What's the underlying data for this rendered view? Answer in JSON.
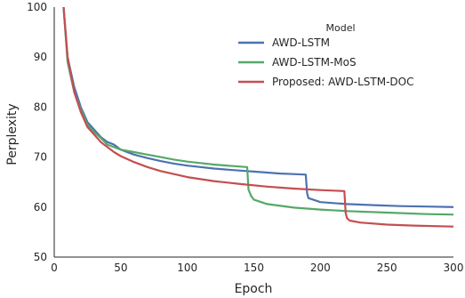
{
  "chart_data": {
    "type": "line",
    "xlabel": "Epoch",
    "ylabel": "Perplexity",
    "xlim": [
      0,
      300
    ],
    "ylim": [
      50,
      100
    ],
    "xticks": [
      0,
      50,
      100,
      150,
      200,
      250,
      300
    ],
    "yticks": [
      50,
      60,
      70,
      80,
      90,
      100
    ],
    "grid": false,
    "legend": {
      "title": "Model",
      "placement": "top-right"
    },
    "series": [
      {
        "name": "AWD-LSTM",
        "color": "#4c72b0",
        "x": [
          7,
          10,
          15,
          20,
          25,
          30,
          35,
          40,
          45,
          50,
          60,
          70,
          80,
          90,
          100,
          110,
          120,
          130,
          140,
          150,
          160,
          170,
          180,
          189,
          190,
          191,
          200,
          220,
          240,
          260,
          280,
          300
        ],
        "y": [
          100,
          90,
          84,
          80,
          77,
          75.5,
          74,
          73,
          72.5,
          71.5,
          70.5,
          69.8,
          69.2,
          68.7,
          68.3,
          68,
          67.7,
          67.5,
          67.3,
          67.1,
          66.9,
          66.7,
          66.6,
          66.5,
          62.8,
          61.8,
          61.0,
          60.6,
          60.4,
          60.2,
          60.1,
          60.0
        ]
      },
      {
        "name": "AWD-LSTM-MoS",
        "color": "#55a868",
        "x": [
          7,
          10,
          15,
          20,
          25,
          30,
          35,
          40,
          45,
          50,
          60,
          70,
          80,
          90,
          100,
          110,
          120,
          130,
          140,
          145,
          146,
          148,
          150,
          160,
          180,
          200,
          220,
          250,
          280,
          300
        ],
        "y": [
          100,
          89,
          83,
          79.5,
          76.5,
          75,
          73.8,
          72.5,
          72,
          71.5,
          71,
          70.5,
          70,
          69.5,
          69.1,
          68.8,
          68.5,
          68.3,
          68.1,
          68.0,
          63.5,
          62.2,
          61.5,
          60.6,
          59.9,
          59.5,
          59.2,
          58.9,
          58.6,
          58.5
        ]
      },
      {
        "name": "Proposed: AWD-LSTM-DOC",
        "color": "#c44e52",
        "x": [
          7,
          10,
          15,
          20,
          25,
          30,
          35,
          40,
          45,
          50,
          60,
          70,
          80,
          90,
          100,
          120,
          140,
          160,
          180,
          200,
          210,
          218,
          219,
          220,
          222,
          230,
          250,
          270,
          300
        ],
        "y": [
          100,
          90,
          83,
          79,
          76,
          74.5,
          73,
          72,
          71,
          70.2,
          69,
          68,
          67.2,
          66.6,
          66,
          65.2,
          64.6,
          64.1,
          63.7,
          63.4,
          63.3,
          63.2,
          58.8,
          57.8,
          57.3,
          56.9,
          56.5,
          56.3,
          56.1
        ]
      }
    ]
  }
}
